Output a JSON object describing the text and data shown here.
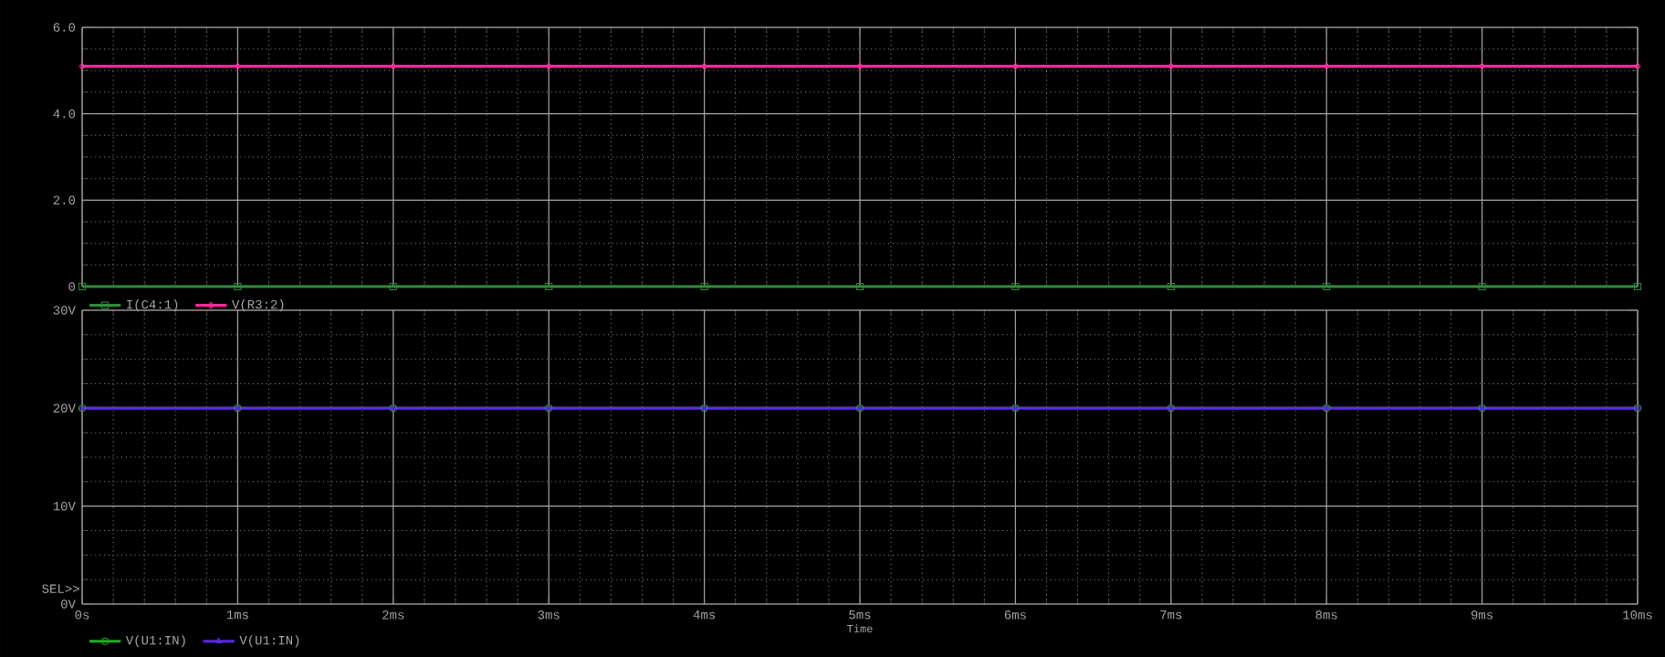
{
  "chart_data": [
    {
      "type": "line",
      "x": [
        0,
        1,
        2,
        3,
        4,
        5,
        6,
        7,
        8,
        9,
        10
      ],
      "xlim": [
        0,
        10
      ],
      "ylim": [
        0,
        6
      ],
      "xticks": [
        {
          "value": 0,
          "label": null
        },
        {
          "value": 1,
          "label": null
        },
        {
          "value": 2,
          "label": null
        },
        {
          "value": 3,
          "label": null
        },
        {
          "value": 4,
          "label": null
        },
        {
          "value": 5,
          "label": null
        },
        {
          "value": 6,
          "label": null
        },
        {
          "value": 7,
          "label": null
        },
        {
          "value": 8,
          "label": null
        },
        {
          "value": 9,
          "label": null
        },
        {
          "value": 10,
          "label": null
        }
      ],
      "yticks": [
        0,
        {
          "value": 2,
          "label": "2.0"
        },
        {
          "value": 4,
          "label": "4.0"
        },
        {
          "value": 6,
          "label": "6.0"
        }
      ],
      "tick_labels": "y",
      "grid": true,
      "legend": "bottom left",
      "series": [
        {
          "name": "I(C4:1)",
          "color": "#2e8b3a",
          "marker": "square",
          "values": [
            0,
            0,
            0,
            0,
            0,
            0,
            0,
            0,
            0,
            0,
            0
          ]
        },
        {
          "name": "V(R3:2)",
          "color": "#ff2a9a",
          "marker": "diamond",
          "values": [
            5.1,
            5.1,
            5.1,
            5.1,
            5.1,
            5.1,
            5.1,
            5.1,
            5.1,
            5.1,
            5.1
          ]
        }
      ]
    },
    {
      "type": "line",
      "x": [
        0,
        1,
        2,
        3,
        4,
        5,
        6,
        7,
        8,
        9,
        10
      ],
      "xlim": [
        0,
        10
      ],
      "ylim": [
        0,
        30
      ],
      "xlabel": "Time",
      "xticks": [
        {
          "value": 0,
          "label": "0s"
        },
        {
          "value": 1,
          "label": "1ms"
        },
        {
          "value": 2,
          "label": "2ms"
        },
        {
          "value": 3,
          "label": "3ms"
        },
        {
          "value": 4,
          "label": "4ms"
        },
        {
          "value": 5,
          "label": "5ms"
        },
        {
          "value": 6,
          "label": "6ms"
        },
        {
          "value": 7,
          "label": "7ms"
        },
        {
          "value": 8,
          "label": "8ms"
        },
        {
          "value": 9,
          "label": "9ms"
        },
        {
          "value": 10,
          "label": "10ms"
        }
      ],
      "yticks": [
        {
          "value": 0,
          "label": "0V"
        },
        {
          "value": 10,
          "label": "10V"
        },
        {
          "value": 20,
          "label": "20V"
        },
        {
          "value": 30,
          "label": "30V"
        }
      ],
      "grid": true,
      "legend": "bottom left",
      "annotations": [
        "SEL>>"
      ],
      "series": [
        {
          "name": "V(U1:IN)",
          "color": "#22aa22",
          "marker": "circle",
          "values": [
            20,
            20,
            20,
            20,
            20,
            20,
            20,
            20,
            20,
            20,
            20
          ]
        },
        {
          "name": "V(U1:IN)",
          "color": "#5a28e0",
          "marker": "triangle",
          "values": [
            20,
            20,
            20,
            20,
            20,
            20,
            20,
            20,
            20,
            20,
            20
          ]
        }
      ]
    }
  ]
}
